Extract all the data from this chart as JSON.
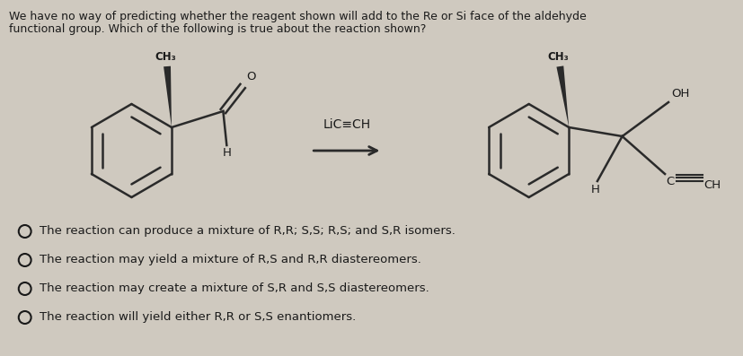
{
  "question_line1": "We have no way of predicting whether the reagent shown will add to the Re or Si face of the aldehyde",
  "question_line2": "functional group. Which of the following is true about the reaction shown?",
  "reagent_label": "LiC≡CH",
  "choices": [
    "The reaction can produce a mixture of R,R; S,S; R,S; and S,R isomers.",
    "The reaction may yield a mixture of R,S and R,R diastereomers.",
    "The reaction may create a mixture of S,R and S,S diastereomers.",
    "The reaction will yield either R,R or S,S enantiomers."
  ],
  "background_color": "#cfc9bf",
  "text_color": "#1a1a1a",
  "font_size_question": 9.0,
  "font_size_choices": 9.5,
  "font_size_chem": 8.5
}
